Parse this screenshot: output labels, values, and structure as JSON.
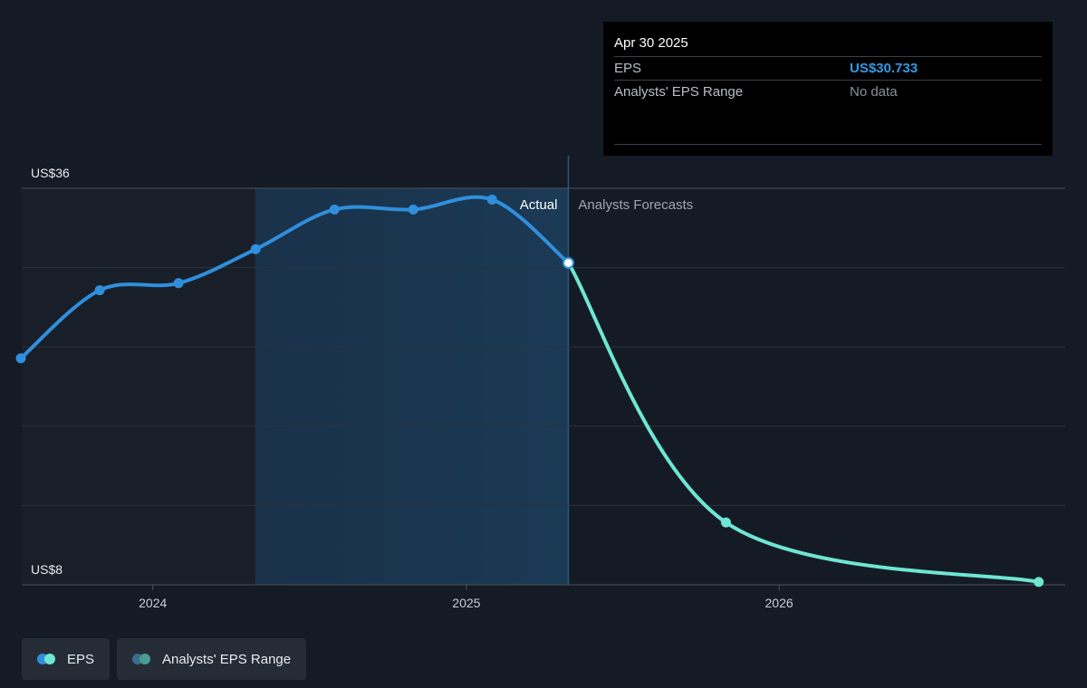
{
  "colors": {
    "background": "#151b24",
    "actual_line": "#2f8fdc",
    "forecast_line": "#6ee6d3",
    "actual_region": "#1b3a55",
    "tooltip_value": "#2f9be6",
    "range_legend_1": "#3a6d8e",
    "range_legend_2": "#4c9b93"
  },
  "tooltip": {
    "date": "Apr 30 2025",
    "eps_label": "EPS",
    "eps_value": "US$30.733",
    "range_label": "Analysts' EPS Range",
    "range_value": "No data"
  },
  "legend": {
    "eps_label": "EPS",
    "range_label": "Analysts' EPS Range"
  },
  "chart_data": {
    "type": "line",
    "y_top_label": "US$36",
    "y_bottom_label": "US$8",
    "ylim": [
      8,
      36
    ],
    "xlim": [
      "2023-08-01",
      "2026-12-01"
    ],
    "x_tick_labels": [
      {
        "label": "2024",
        "date": "2024-01-01"
      },
      {
        "label": "2025",
        "date": "2025-01-01"
      },
      {
        "label": "2026",
        "date": "2026-01-01"
      }
    ],
    "actual_label": "Actual",
    "forecast_label": "Analysts Forecasts",
    "highlight_start": "2024-04-30",
    "highlight_end": "2025-04-30",
    "grid": true,
    "series": [
      {
        "name": "EPS",
        "points": [
          {
            "date": "2023-07-31",
            "value": 24.0
          },
          {
            "date": "2023-10-31",
            "value": 28.8
          },
          {
            "date": "2024-01-31",
            "value": 29.3
          },
          {
            "date": "2024-04-30",
            "value": 31.7
          },
          {
            "date": "2024-07-31",
            "value": 34.5
          },
          {
            "date": "2024-10-31",
            "value": 34.5
          },
          {
            "date": "2025-01-31",
            "value": 35.2
          },
          {
            "date": "2025-04-30",
            "value": 30.733
          }
        ]
      },
      {
        "name": "Analysts Forecasts",
        "points": [
          {
            "date": "2025-04-30",
            "value": 30.733
          },
          {
            "date": "2025-10-31",
            "value": 12.4
          },
          {
            "date": "2026-10-31",
            "value": 8.2
          }
        ]
      }
    ]
  }
}
